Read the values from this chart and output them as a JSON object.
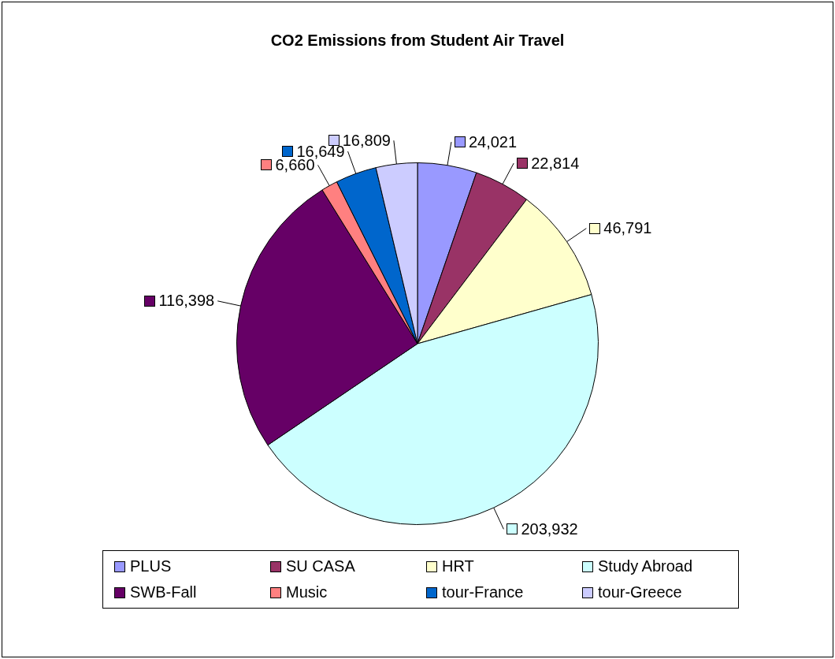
{
  "chart_data": {
    "type": "pie",
    "title": "CO2 Emissions from Student Air Travel",
    "categories": [
      "PLUS",
      "SU CASA",
      "HRT",
      "Study Abroad",
      "SWB-Fall",
      "Music",
      "tour-France",
      "tour-Greece"
    ],
    "values": [
      24021,
      22814,
      46791,
      203932,
      116398,
      6660,
      16649,
      16809
    ],
    "colors": [
      "#9999ff",
      "#993366",
      "#ffffcc",
      "#ccffff",
      "#660066",
      "#ff8080",
      "#0066cc",
      "#ccccff"
    ],
    "value_labels": [
      "24,021",
      "22,814",
      "46,791",
      "203,932",
      "116,398",
      "6,660",
      "16,649",
      "16,809"
    ],
    "legend": "bottom"
  }
}
